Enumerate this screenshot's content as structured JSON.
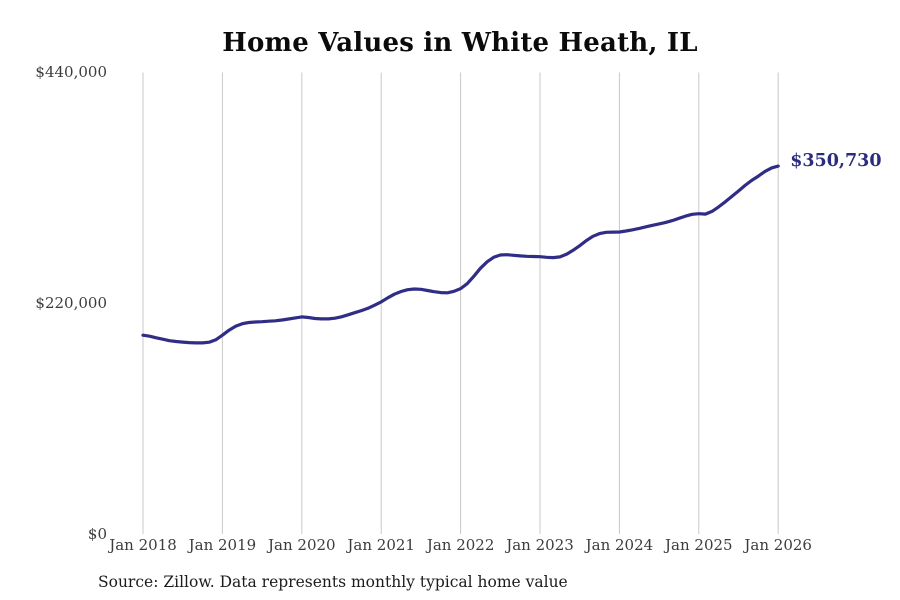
{
  "title": "Home Values in White Heath, IL",
  "source_note": "Source: Zillow. Data represents monthly typical home value",
  "colors": {
    "line": "#302d87",
    "annotation": "#2c2c7e",
    "gridline": "#c9c9c9",
    "tick_text": "#3c3c3c",
    "title_text": "#0b0b0b"
  },
  "chart_data": {
    "type": "line",
    "title": "Home Values in White Heath, IL",
    "series_name": "Typical home value",
    "frequency": "monthly",
    "x_start": "Jan 2018",
    "x_end": "Jan 2026",
    "x_tick_labels": [
      "Jan 2018",
      "Jan 2019",
      "Jan 2020",
      "Jan 2021",
      "Jan 2022",
      "Jan 2023",
      "Jan 2024",
      "Jan 2025",
      "Jan 2026"
    ],
    "x_tick_indices": [
      0,
      12,
      24,
      36,
      48,
      60,
      72,
      84,
      96
    ],
    "y_ticks": [
      {
        "value": 0,
        "label": "$0"
      },
      {
        "value": 220000,
        "label": "$220,000"
      },
      {
        "value": 440000,
        "label": "$440,000"
      }
    ],
    "ylim": [
      0,
      440000
    ],
    "grid": "vertical-only",
    "end_label": "$350,730",
    "end_value": 350730,
    "values": [
      189500,
      188600,
      187100,
      185700,
      184300,
      183500,
      183000,
      182500,
      182200,
      182200,
      182900,
      185200,
      189500,
      194300,
      198100,
      200500,
      201600,
      202100,
      202400,
      202900,
      203300,
      204000,
      205000,
      206000,
      207000,
      206400,
      205500,
      205100,
      205100,
      205700,
      207100,
      209000,
      211000,
      213000,
      215200,
      218100,
      221300,
      225200,
      228600,
      231200,
      232900,
      233600,
      233300,
      232200,
      231000,
      230200,
      230000,
      231400,
      234000,
      238600,
      245700,
      253300,
      259500,
      263800,
      266000,
      266300,
      265700,
      265100,
      264800,
      264600,
      264400,
      263800,
      263500,
      264200,
      266700,
      270500,
      274900,
      279700,
      283800,
      286400,
      287600,
      287800,
      287900,
      288900,
      290000,
      291400,
      292900,
      294300,
      295700,
      297100,
      298800,
      301000,
      303100,
      304800,
      305400,
      305000,
      307600,
      311900,
      316700,
      321900,
      327000,
      332400,
      337100,
      341200,
      345700,
      349000,
      350730
    ]
  }
}
